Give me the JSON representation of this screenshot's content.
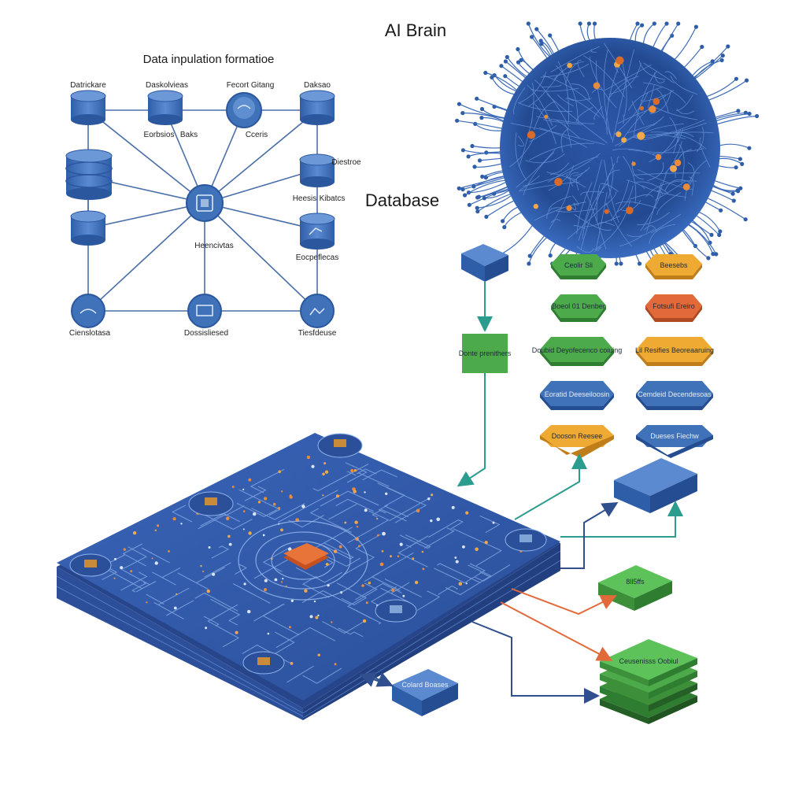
{
  "titles": {
    "ai_brain": "AI Brain",
    "network": "Data inpulation formatioe",
    "database": "Database"
  },
  "network_nodes": {
    "n1": "Datrickare",
    "n2": "Daskolvieas",
    "n3": "Fecort Gitang",
    "n4": "Daksao",
    "n5": "Eorbsios",
    "n6": "Baks",
    "n7": "Cceris",
    "n8": "Diestroe",
    "n9": "Heesis",
    "n10": "Kibatcs",
    "n11": "Heencivtas",
    "n12": "Eocpeflecas",
    "n13": "Cienslotasa",
    "n14": "Dossisliesed",
    "n15": "Tiesfdeuse"
  },
  "data_blocks": {
    "center": "Donte prenithers",
    "g1": "Ceolir Sli",
    "o1": "Beesebs",
    "g2": "Boeol 01 Denber",
    "o2": "Fotsufi Ereiro",
    "g3": "Doubid Deyofecenco coiuing",
    "o3": "Lil Resifies Beoreaaruing",
    "b1": "Eoratid Deeseiloosin",
    "b2": "Cemdeid Decendesoas",
    "o4": "Dooson Reesee",
    "b3": "Dueses Fiechw",
    "green_small": "8ll5ffs",
    "green_stack": "Ceusenisss Oobiul",
    "blue_bottom": "Colard Boases"
  },
  "colors": {
    "blue": "#3f72b8",
    "green": "#4caa4a",
    "orange": "#e59a2b",
    "red_orange": "#e26a3a",
    "teal": "#2a9d8f",
    "navy": "#2f4f8f"
  }
}
